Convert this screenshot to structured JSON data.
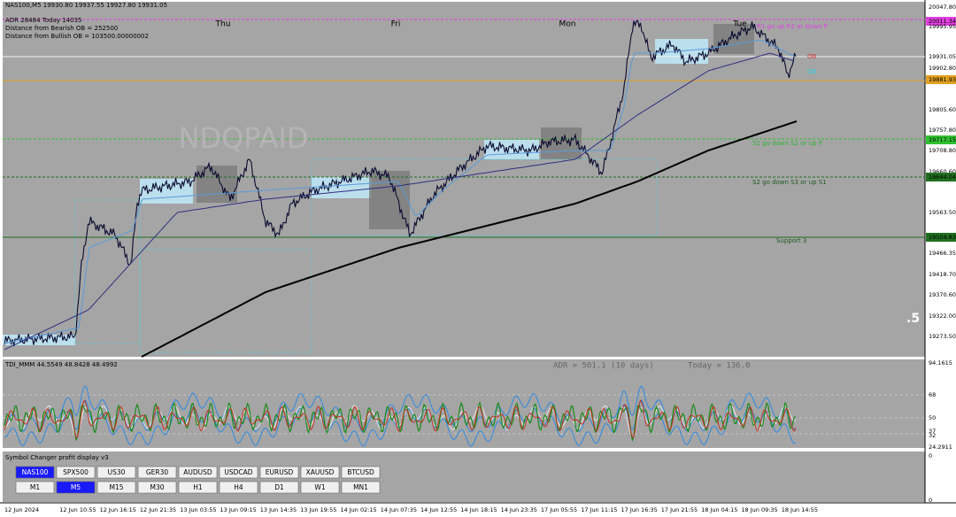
{
  "header": {
    "symbol_line": "NAS100,M5  19930.80 19937.55 19927.80 19931.05",
    "adr_line": "ADR 28484  Today 14035",
    "bearish_ob": "Distance from Bearish OB = 252500",
    "bullish_ob": "Distance from Bullish OB = 103500.00000002"
  },
  "day_labels": [
    "Thu",
    "Fri",
    "Mon",
    "Tue"
  ],
  "watermark": "NDQPAID",
  "annotations": [
    "R1 go up R2 or down P",
    "OB",
    "OB",
    "S1 go down S2 or up P",
    "S2 go down S3 or up S1",
    "Support 3",
    ".5"
  ],
  "price_axis": [
    "20047.80",
    "20011.34",
    "19995.95",
    "19931.05",
    "19902.80",
    "19881.93",
    "19805.60",
    "19757.80",
    "19717.15",
    "19708.80",
    "19660.60",
    "19644.04",
    "19563.50",
    "19504.83",
    "19466.35",
    "19418.70",
    "19370.60",
    "19322.00",
    "19273.50"
  ],
  "indicator": {
    "title": "TDI_MMM 44.5549 48.8428 48.4992",
    "adr": "ADR = 501.1  (10 days)",
    "today": "Today = 136.0",
    "axis": [
      "94.1615",
      "68",
      "50",
      "37",
      "32",
      "24.2911"
    ]
  },
  "symbol_changer": {
    "title": "Symbol Changer profit display v3",
    "symbols": [
      "NAS100",
      "SPX500",
      "US30",
      "GER30",
      "AUDUSD",
      "USDCAD",
      "EURUSD",
      "XAUUSD",
      "BTCUSD"
    ],
    "timeframes": [
      "M1",
      "M5",
      "M15",
      "M30",
      "H1",
      "H4",
      "D1",
      "W1",
      "MN1"
    ],
    "active_symbol": "NAS100",
    "active_timeframe": "M5",
    "axis": [
      "0",
      "0"
    ]
  },
  "time_axis": [
    "12 Jun 2024",
    "12 Jun 10:55",
    "12 Jun 16:15",
    "12 Jun 21:35",
    "13 Jun 03:55",
    "13 Jun 09:15",
    "13 Jun 14:35",
    "13 Jun 19:55",
    "14 Jun 02:15",
    "14 Jun 07:35",
    "14 Jun 12:55",
    "14 Jun 18:15",
    "14 Jun 23:35",
    "17 Jun 05:55",
    "17 Jun 11:15",
    "17 Jun 16:35",
    "17 Jun 21:55",
    "18 Jun 04:15",
    "18 Jun 09:35",
    "18 Jun 14:55"
  ]
}
